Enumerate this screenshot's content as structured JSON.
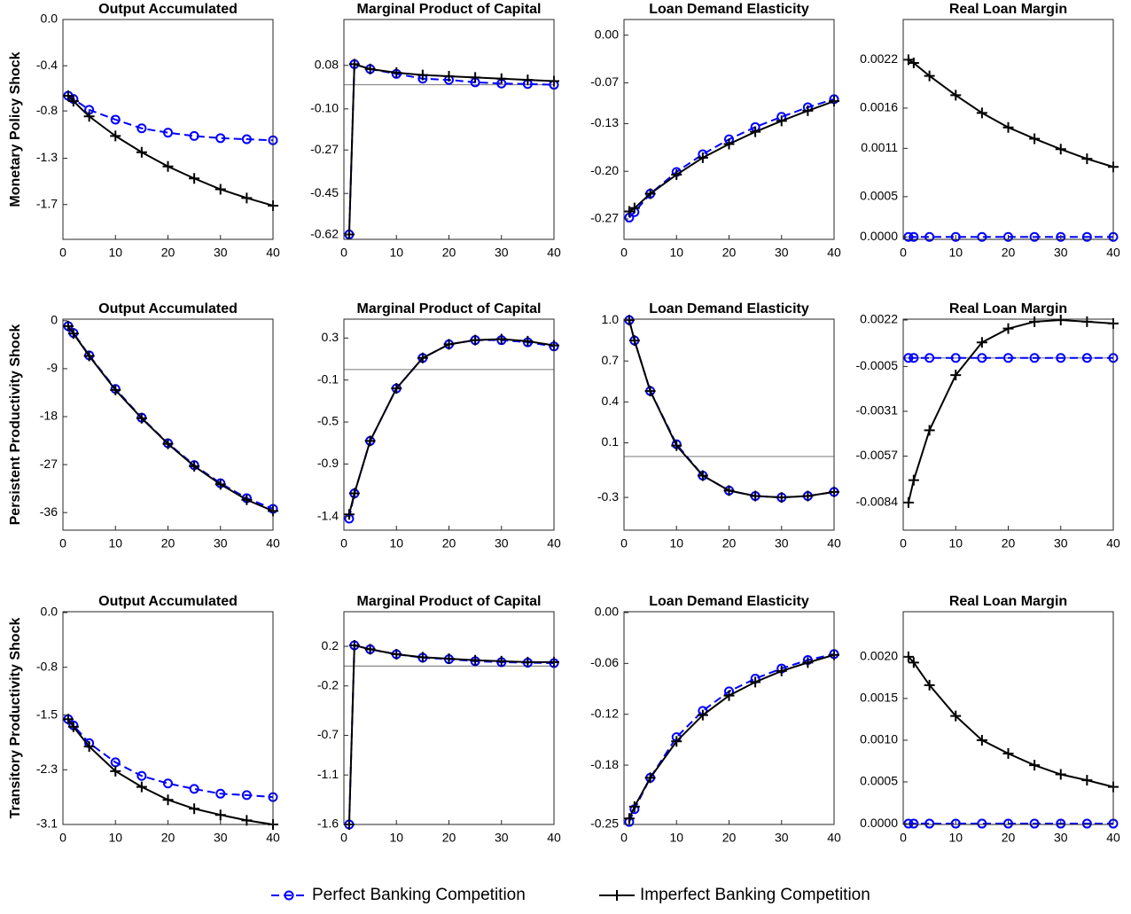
{
  "chart_data": [
    {
      "type": "line",
      "title": "Output Accumulated",
      "ylabel": "Monetary Policy Shock",
      "x": [
        1,
        2,
        5,
        10,
        15,
        20,
        25,
        30,
        35,
        40
      ],
      "series": [
        {
          "name": "Perfect Banking Competition",
          "color": "#0000ff",
          "linestyle": "--",
          "marker": "o",
          "values": [
            -0.7,
            -0.73,
            -0.83,
            -0.92,
            -1.0,
            -1.04,
            -1.07,
            -1.09,
            -1.1,
            -1.11
          ]
        },
        {
          "name": "Imperfect Banking Competition",
          "color": "#000000",
          "linestyle": "-",
          "marker": "+",
          "values": [
            -0.7,
            -0.75,
            -0.89,
            -1.07,
            -1.22,
            -1.35,
            -1.46,
            -1.56,
            -1.64,
            -1.71
          ]
        }
      ],
      "xlim": [
        0,
        40
      ],
      "xticks": [
        0,
        10,
        20,
        30,
        40
      ],
      "ylim": [
        -2.02,
        0
      ],
      "yticks": [
        {
          "value": 0,
          "label": "0.0"
        },
        {
          "value": -0.425,
          "label": "-0.4"
        },
        {
          "value": -0.84,
          "label": "-0.8"
        },
        {
          "value": -1.275,
          "label": "-1.3"
        },
        -1.7
      ]
    },
    {
      "type": "line",
      "title": "Marginal Product of Capital",
      "x": [
        1,
        2,
        5,
        10,
        15,
        20,
        25,
        30,
        35,
        40
      ],
      "series": [
        {
          "color": "#0000ff",
          "linestyle": "--",
          "marker": "o",
          "values": [
            -0.62,
            0.085,
            0.065,
            0.045,
            0.025,
            0.02,
            0.01,
            0.005,
            0.003,
            0.0
          ]
        },
        {
          "color": "#000000",
          "linestyle": "-",
          "marker": "+",
          "values": [
            -0.62,
            0.085,
            0.065,
            0.05,
            0.04,
            0.035,
            0.03,
            0.025,
            0.02,
            0.015
          ]
        }
      ],
      "xlim": [
        0,
        40
      ],
      "xticks": [
        0,
        10,
        20,
        30,
        40
      ],
      "ylim": [
        -0.64,
        0.27
      ],
      "yticks": [
        0.08,
        {
          "value": -0.1,
          "label": "-0.10"
        },
        -0.27,
        -0.45,
        -0.62
      ],
      "hline": 0
    },
    {
      "type": "line",
      "title": "Loan Demand Elasticity",
      "x": [
        1,
        2,
        5,
        10,
        15,
        20,
        25,
        30,
        35,
        40
      ],
      "series": [
        {
          "color": "#0000ff",
          "linestyle": "--",
          "marker": "o",
          "values": [
            -0.268,
            -0.26,
            -0.233,
            -0.201,
            -0.175,
            -0.153,
            -0.135,
            -0.12,
            -0.106,
            -0.094
          ]
        },
        {
          "color": "#000000",
          "linestyle": "-",
          "marker": "+",
          "values": [
            -0.259,
            -0.254,
            -0.233,
            -0.205,
            -0.18,
            -0.16,
            -0.142,
            -0.126,
            -0.111,
            -0.097
          ]
        }
      ],
      "xlim": [
        0,
        40
      ],
      "xticks": [
        0,
        10,
        20,
        30,
        40
      ],
      "ylim": [
        -0.3,
        0.023
      ],
      "yticks": [
        {
          "value": 0,
          "label": "0.00"
        },
        -0.07,
        -0.13,
        {
          "value": -0.2,
          "label": "-0.20"
        },
        -0.27
      ]
    },
    {
      "type": "line",
      "title": "Real Loan Margin",
      "x": [
        1,
        2,
        5,
        10,
        15,
        20,
        25,
        30,
        35,
        40
      ],
      "series": [
        {
          "color": "#0000ff",
          "linestyle": "--",
          "marker": "o",
          "values": [
            0,
            0,
            0,
            0,
            0,
            0,
            0,
            0,
            0,
            0
          ]
        },
        {
          "color": "#000000",
          "linestyle": "-",
          "marker": "+",
          "values": [
            0.0022,
            0.00216,
            0.002,
            0.00176,
            0.00154,
            0.00136,
            0.00122,
            0.00109,
            0.00097,
            0.00087
          ]
        }
      ],
      "xlim": [
        0,
        40
      ],
      "xticks": [
        0,
        10,
        20,
        30,
        40
      ],
      "ylim": [
        -3e-05,
        0.0027
      ],
      "yticks": [
        0.0022,
        0.0016,
        0.0011,
        0.0005,
        {
          "value": 0,
          "label": "0.0000"
        }
      ]
    },
    {
      "type": "line",
      "title": "Output Accumulated",
      "ylabel": "Persistent Productivity Shock",
      "x": [
        1,
        2,
        5,
        10,
        15,
        20,
        25,
        30,
        35,
        40
      ],
      "series": [
        {
          "color": "#0000ff",
          "linestyle": "--",
          "marker": "o",
          "values": [
            -1.0,
            -2.3,
            -6.5,
            -12.8,
            -18.2,
            -23,
            -27.1,
            -30.5,
            -33.3,
            -35.3
          ]
        },
        {
          "color": "#000000",
          "linestyle": "-",
          "marker": "+",
          "values": [
            -1.0,
            -2.4,
            -6.6,
            -13,
            -18.3,
            -23.1,
            -27.3,
            -30.7,
            -33.6,
            -35.7
          ]
        }
      ],
      "xlim": [
        0,
        40
      ],
      "xticks": [
        0,
        10,
        20,
        30,
        40
      ],
      "ylim": [
        -39.3,
        0.3
      ],
      "yticks": [
        0,
        -9,
        -18,
        -27,
        -36
      ]
    },
    {
      "type": "line",
      "title": "Marginal Product of Capital",
      "x": [
        1,
        2,
        5,
        10,
        15,
        20,
        25,
        30,
        35,
        40
      ],
      "series": [
        {
          "color": "#0000ff",
          "linestyle": "--",
          "marker": "o",
          "values": [
            -1.42,
            -1.18,
            -0.68,
            -0.18,
            0.11,
            0.24,
            0.28,
            0.28,
            0.26,
            0.22
          ]
        },
        {
          "color": "#000000",
          "linestyle": "-",
          "marker": "+",
          "values": [
            -1.38,
            -1.18,
            -0.68,
            -0.18,
            0.11,
            0.24,
            0.28,
            0.29,
            0.27,
            0.23
          ]
        }
      ],
      "xlim": [
        0,
        40
      ],
      "xticks": [
        0,
        10,
        20,
        30,
        40
      ],
      "ylim": [
        -1.53,
        0.48
      ],
      "yticks": [
        0.3,
        -0.1,
        -0.5,
        -0.9,
        -1.4
      ],
      "hline": 0
    },
    {
      "type": "line",
      "title": "Loan Demand Elasticity",
      "x": [
        1,
        2,
        5,
        10,
        15,
        20,
        25,
        30,
        35,
        40
      ],
      "series": [
        {
          "color": "#0000ff",
          "linestyle": "--",
          "marker": "o",
          "values": [
            1.0,
            0.85,
            0.48,
            0.09,
            -0.14,
            -0.25,
            -0.29,
            -0.3,
            -0.29,
            -0.26
          ]
        },
        {
          "color": "#000000",
          "linestyle": "-",
          "marker": "+",
          "values": [
            1.0,
            0.85,
            0.48,
            0.08,
            -0.14,
            -0.25,
            -0.29,
            -0.3,
            -0.29,
            -0.26
          ]
        }
      ],
      "xlim": [
        0,
        40
      ],
      "xticks": [
        0,
        10,
        20,
        30,
        40
      ],
      "ylim": [
        -0.54,
        1.007
      ],
      "yticks": [
        {
          "value": 1,
          "label": "1.0"
        },
        0.7,
        0.4,
        0.1,
        -0.3
      ],
      "hline": 0
    },
    {
      "type": "line",
      "title": "Real Loan Margin",
      "x": [
        1,
        2,
        5,
        10,
        15,
        20,
        25,
        30,
        35,
        40
      ],
      "series": [
        {
          "color": "#0000ff",
          "linestyle": "--",
          "marker": "o",
          "values": [
            0,
            0,
            0,
            0,
            0,
            0,
            0,
            0,
            0,
            0
          ]
        },
        {
          "color": "#000000",
          "linestyle": "-",
          "marker": "+",
          "values": [
            -0.0084,
            -0.0071,
            -0.0042,
            -0.001,
            0.0009,
            0.0017,
            0.0021,
            0.0022,
            0.0021,
            0.002
          ]
        }
      ],
      "xlim": [
        0,
        40
      ],
      "xticks": [
        0,
        10,
        20,
        30,
        40
      ],
      "ylim": [
        -0.01,
        0.00225
      ],
      "yticks": [
        0.0022,
        -0.0005,
        -0.0031,
        -0.0057,
        -0.0084
      ],
      "hline": 0
    },
    {
      "type": "line",
      "title": "Output Accumulated",
      "ylabel": "Transitory Productivity Shock",
      "x": [
        1,
        2,
        5,
        10,
        15,
        20,
        25,
        30,
        35,
        40
      ],
      "series": [
        {
          "color": "#0000ff",
          "linestyle": "--",
          "marker": "o",
          "values": [
            -1.56,
            -1.65,
            -1.91,
            -2.19,
            -2.39,
            -2.5,
            -2.58,
            -2.65,
            -2.67,
            -2.7
          ]
        },
        {
          "color": "#000000",
          "linestyle": "-",
          "marker": "+",
          "values": [
            -1.56,
            -1.67,
            -1.96,
            -2.32,
            -2.55,
            -2.74,
            -2.87,
            -2.96,
            -3.04,
            -3.1
          ]
        }
      ],
      "xlim": [
        0,
        40
      ],
      "xticks": [
        0,
        10,
        20,
        30,
        40
      ],
      "ylim": [
        -3.1,
        0.013
      ],
      "yticks": [
        {
          "value": 0,
          "label": "0.0"
        },
        -0.8,
        -1.5,
        -2.3,
        -3.1
      ]
    },
    {
      "type": "line",
      "title": "Marginal Product of Capital",
      "x": [
        1,
        2,
        5,
        10,
        15,
        20,
        25,
        30,
        35,
        40
      ],
      "series": [
        {
          "color": "#0000ff",
          "linestyle": "--",
          "marker": "o",
          "values": [
            -1.6,
            0.21,
            0.17,
            0.12,
            0.085,
            0.07,
            0.05,
            0.04,
            0.035,
            0.03
          ]
        },
        {
          "color": "#000000",
          "linestyle": "-",
          "marker": "+",
          "values": [
            -1.6,
            0.21,
            0.17,
            0.12,
            0.09,
            0.075,
            0.06,
            0.05,
            0.04,
            0.04
          ]
        }
      ],
      "xlim": [
        0,
        40
      ],
      "xticks": [
        0,
        10,
        20,
        30,
        40
      ],
      "ylim": [
        -1.6,
        0.55
      ],
      "yticks": [
        0.2,
        -0.2,
        -0.7,
        -1.1,
        -1.6
      ],
      "hline": 0
    },
    {
      "type": "line",
      "title": "Loan Demand Elasticity",
      "x": [
        1,
        2,
        5,
        10,
        15,
        20,
        25,
        30,
        35,
        40
      ],
      "series": [
        {
          "color": "#0000ff",
          "linestyle": "--",
          "marker": "o",
          "values": [
            -0.247,
            -0.232,
            -0.195,
            -0.147,
            -0.116,
            -0.093,
            -0.078,
            -0.066,
            -0.056,
            -0.049
          ]
        },
        {
          "color": "#000000",
          "linestyle": "-",
          "marker": "+",
          "values": [
            -0.243,
            -0.229,
            -0.195,
            -0.152,
            -0.121,
            -0.098,
            -0.082,
            -0.069,
            -0.059,
            -0.05
          ]
        }
      ],
      "xlim": [
        0,
        40
      ],
      "xticks": [
        0,
        10,
        20,
        30,
        40
      ],
      "ylim": [
        -0.25,
        0.001
      ],
      "yticks": [
        {
          "value": 0,
          "label": "0.00"
        },
        -0.06,
        -0.12,
        -0.18,
        -0.25
      ]
    },
    {
      "type": "line",
      "title": "Real Loan Margin",
      "x": [
        1,
        2,
        5,
        10,
        15,
        20,
        25,
        30,
        35,
        40
      ],
      "series": [
        {
          "color": "#0000ff",
          "linestyle": "--",
          "marker": "o",
          "values": [
            0,
            0,
            0,
            0,
            0,
            0,
            0,
            0,
            0,
            0
          ]
        },
        {
          "color": "#000000",
          "linestyle": "-",
          "marker": "+",
          "values": [
            0.002,
            0.00193,
            0.00166,
            0.00129,
            0.001,
            0.00084,
            0.0007,
            0.00059,
            0.00052,
            0.00044
          ]
        }
      ],
      "xlim": [
        0,
        40
      ],
      "xticks": [
        0,
        10,
        20,
        30,
        40
      ],
      "ylim": [
        -1e-05,
        0.00254
      ],
      "yticks": [
        {
          "value": 0.002,
          "label": "0.0020"
        },
        0.0015,
        {
          "value": 0.001,
          "label": "0.0010"
        },
        0.0005,
        {
          "value": 0,
          "label": "0.0000"
        }
      ]
    }
  ]
}
